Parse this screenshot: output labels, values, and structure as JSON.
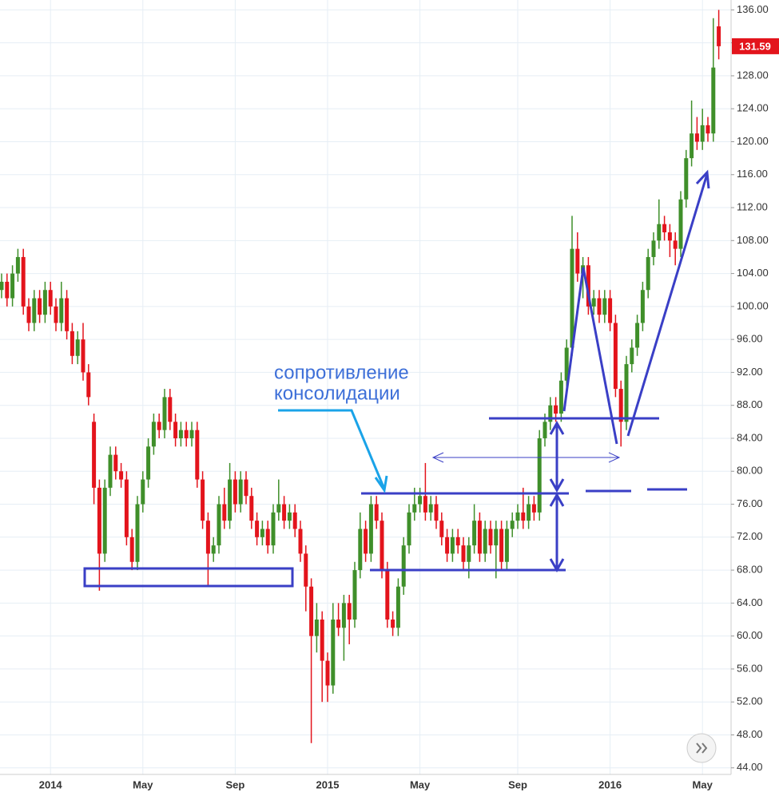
{
  "chart_data": {
    "type": "candlestick",
    "annotation_lines": [
      "сопротивление",
      "консолидации"
    ],
    "up_color": "#3f8f2a",
    "down_color": "#e3141c",
    "grid": true,
    "ylim": [
      43.2,
      137.2
    ],
    "yticks": [
      {
        "value": 44,
        "label": "44.00"
      },
      {
        "value": 48,
        "label": "48.00"
      },
      {
        "value": 52,
        "label": "52.00"
      },
      {
        "value": 56,
        "label": "56.00"
      },
      {
        "value": 60,
        "label": "60.00"
      },
      {
        "value": 64,
        "label": "64.00"
      },
      {
        "value": 68,
        "label": "68.00"
      },
      {
        "value": 72,
        "label": "72.00"
      },
      {
        "value": 76,
        "label": "76.00"
      },
      {
        "value": 80,
        "label": "80.00"
      },
      {
        "value": 84,
        "label": "84.00"
      },
      {
        "value": 88,
        "label": "88.00"
      },
      {
        "value": 92,
        "label": "92.00"
      },
      {
        "value": 96,
        "label": "96.00"
      },
      {
        "value": 100,
        "label": "100.00"
      },
      {
        "value": 104,
        "label": "104.00"
      },
      {
        "value": 108,
        "label": "108.00"
      },
      {
        "value": 112,
        "label": "112.00"
      },
      {
        "value": 116,
        "label": "116.00"
      },
      {
        "value": 120,
        "label": "120.00"
      },
      {
        "value": 124,
        "label": "124.00"
      },
      {
        "value": 128,
        "label": "128.00"
      },
      {
        "value": 132,
        "label": "132.00"
      },
      {
        "value": 136,
        "label": "136.00"
      }
    ],
    "categories": [
      null,
      null,
      null,
      null,
      null,
      null,
      null,
      null,
      null,
      "2014",
      null,
      null,
      null,
      null,
      null,
      null,
      null,
      null,
      null,
      null,
      null,
      null,
      null,
      null,
      null,
      null,
      "May",
      null,
      null,
      null,
      null,
      null,
      null,
      null,
      null,
      null,
      null,
      null,
      null,
      null,
      null,
      null,
      null,
      "Sep",
      null,
      null,
      null,
      null,
      null,
      null,
      null,
      null,
      null,
      null,
      null,
      null,
      null,
      null,
      null,
      null,
      "2015",
      null,
      null,
      null,
      null,
      null,
      null,
      null,
      null,
      null,
      null,
      null,
      null,
      null,
      null,
      null,
      null,
      "May",
      null,
      null,
      null,
      null,
      null,
      null,
      null,
      null,
      null,
      null,
      null,
      null,
      null,
      null,
      null,
      null,
      null,
      "Sep",
      null,
      null,
      null,
      null,
      null,
      null,
      null,
      null,
      null,
      null,
      null,
      null,
      null,
      null,
      null,
      null,
      "2016",
      null,
      null,
      null,
      null,
      null,
      null,
      null,
      null,
      null,
      null,
      null,
      null,
      null,
      null,
      null,
      null,
      "May",
      null,
      null,
      null
    ],
    "ohlc": [
      [
        102,
        104,
        101,
        103
      ],
      [
        103,
        104,
        100,
        101
      ],
      [
        101,
        105,
        100,
        104
      ],
      [
        104,
        107,
        103,
        106
      ],
      [
        106,
        107,
        99,
        100
      ],
      [
        100,
        101,
        97,
        98
      ],
      [
        98,
        102,
        97,
        101
      ],
      [
        101,
        102,
        98,
        99
      ],
      [
        99,
        103,
        98,
        102
      ],
      [
        102,
        103,
        99,
        100
      ],
      [
        100,
        101,
        97,
        98
      ],
      [
        98,
        103,
        97,
        101
      ],
      [
        101,
        102,
        96,
        97
      ],
      [
        97,
        98,
        93,
        94
      ],
      [
        94,
        97,
        93,
        96
      ],
      [
        96,
        98,
        91,
        92
      ],
      [
        92,
        93,
        88,
        89
      ],
      [
        86,
        87,
        76,
        78
      ],
      [
        78,
        79,
        65.5,
        70
      ],
      [
        70,
        79,
        69,
        78
      ],
      [
        78,
        83,
        77,
        82
      ],
      [
        82,
        83,
        79,
        80
      ],
      [
        80,
        81,
        78,
        79
      ],
      [
        79,
        80,
        71,
        72
      ],
      [
        72,
        73,
        68,
        69
      ],
      [
        69,
        77,
        68,
        76
      ],
      [
        76,
        80,
        75,
        79
      ],
      [
        79,
        84,
        78,
        83
      ],
      [
        83,
        87,
        82,
        86
      ],
      [
        86,
        87,
        84,
        85
      ],
      [
        85,
        90,
        84,
        89
      ],
      [
        89,
        90,
        85,
        86
      ],
      [
        86,
        87,
        83,
        84
      ],
      [
        84,
        86,
        83,
        85
      ],
      [
        85,
        86,
        83,
        84
      ],
      [
        84,
        86,
        83,
        85
      ],
      [
        85,
        86,
        78,
        79
      ],
      [
        79,
        80,
        73,
        74
      ],
      [
        74,
        75,
        66,
        70
      ],
      [
        70,
        72,
        69,
        71
      ],
      [
        71,
        77,
        70,
        76
      ],
      [
        76,
        78,
        73,
        74
      ],
      [
        74,
        81,
        73,
        79
      ],
      [
        79,
        80,
        75,
        76
      ],
      [
        76,
        80,
        75,
        79
      ],
      [
        79,
        80,
        76,
        77
      ],
      [
        77,
        78,
        73,
        74
      ],
      [
        74,
        75,
        71,
        72
      ],
      [
        72,
        74,
        71,
        73
      ],
      [
        73,
        74,
        70,
        71
      ],
      [
        71,
        76,
        70,
        75
      ],
      [
        75,
        79,
        74,
        76
      ],
      [
        76,
        77,
        73,
        74
      ],
      [
        74,
        76,
        73,
        75
      ],
      [
        75,
        76,
        72,
        73
      ],
      [
        73,
        74,
        69,
        70
      ],
      [
        70,
        71,
        63,
        66
      ],
      [
        66,
        67,
        47,
        60
      ],
      [
        60,
        64,
        58,
        62
      ],
      [
        62,
        63,
        52,
        57
      ],
      [
        57,
        58,
        52,
        54
      ],
      [
        54,
        64,
        53,
        62
      ],
      [
        62,
        64,
        60,
        61
      ],
      [
        61,
        65,
        57,
        64
      ],
      [
        64,
        65,
        59,
        62
      ],
      [
        62,
        69,
        61,
        68
      ],
      [
        68,
        75,
        67,
        73
      ],
      [
        73,
        74,
        69,
        70
      ],
      [
        70,
        77,
        69,
        76
      ],
      [
        76,
        77,
        73,
        74
      ],
      [
        74,
        75,
        67,
        68
      ],
      [
        68,
        69,
        61,
        62
      ],
      [
        62,
        63,
        60,
        61
      ],
      [
        61,
        67,
        60,
        66
      ],
      [
        66,
        72,
        65,
        71
      ],
      [
        71,
        76,
        70,
        75
      ],
      [
        75,
        78,
        74,
        76
      ],
      [
        76,
        78,
        75,
        77
      ],
      [
        77,
        81,
        74,
        75
      ],
      [
        75,
        77,
        74,
        76
      ],
      [
        76,
        77,
        73,
        74
      ],
      [
        74,
        75,
        71,
        72
      ],
      [
        72,
        73,
        69,
        70
      ],
      [
        70,
        73,
        69,
        72
      ],
      [
        72,
        73,
        70,
        71
      ],
      [
        71,
        72,
        68,
        69
      ],
      [
        69,
        72,
        67,
        71
      ],
      [
        71,
        76,
        70,
        74
      ],
      [
        74,
        75,
        69,
        70
      ],
      [
        70,
        74,
        69,
        73
      ],
      [
        73,
        74,
        70,
        71
      ],
      [
        71,
        74,
        67,
        73
      ],
      [
        73,
        74,
        68,
        69
      ],
      [
        69,
        74,
        68,
        73
      ],
      [
        73,
        75,
        72,
        74
      ],
      [
        74,
        76,
        73,
        75
      ],
      [
        75,
        78,
        73,
        74
      ],
      [
        74,
        77,
        73,
        76
      ],
      [
        76,
        77,
        74,
        75
      ],
      [
        75,
        85,
        74,
        84
      ],
      [
        84,
        87,
        83,
        86
      ],
      [
        86,
        89,
        85,
        88
      ],
      [
        88,
        89,
        86,
        87
      ],
      [
        87,
        92,
        86,
        91
      ],
      [
        91,
        96,
        90,
        95
      ],
      [
        95,
        111,
        94,
        107
      ],
      [
        107,
        109,
        103,
        104
      ],
      [
        104,
        106,
        101,
        105
      ],
      [
        105,
        106,
        99,
        100
      ],
      [
        100,
        102,
        99,
        101
      ],
      [
        101,
        102,
        98,
        99
      ],
      [
        99,
        102,
        98,
        101
      ],
      [
        101,
        102,
        97,
        98
      ],
      [
        98,
        99,
        89,
        90
      ],
      [
        90,
        91,
        83,
        86
      ],
      [
        86,
        94,
        85,
        93
      ],
      [
        93,
        96,
        92,
        95
      ],
      [
        95,
        99,
        94,
        98
      ],
      [
        98,
        103,
        97,
        102
      ],
      [
        102,
        107,
        101,
        106
      ],
      [
        106,
        109,
        105,
        108
      ],
      [
        108,
        113,
        107,
        110
      ],
      [
        110,
        111,
        108,
        109
      ],
      [
        109,
        110,
        106,
        108
      ],
      [
        108,
        109,
        105,
        107
      ],
      [
        107,
        114,
        106,
        113
      ],
      [
        113,
        119,
        112,
        118
      ],
      [
        118,
        125,
        117,
        121
      ],
      [
        121,
        123,
        119,
        120
      ],
      [
        120,
        124,
        119,
        122
      ],
      [
        122,
        123,
        120,
        121
      ],
      [
        121,
        135,
        120,
        129
      ],
      [
        134,
        136,
        130,
        131.59
      ]
    ]
  }
}
